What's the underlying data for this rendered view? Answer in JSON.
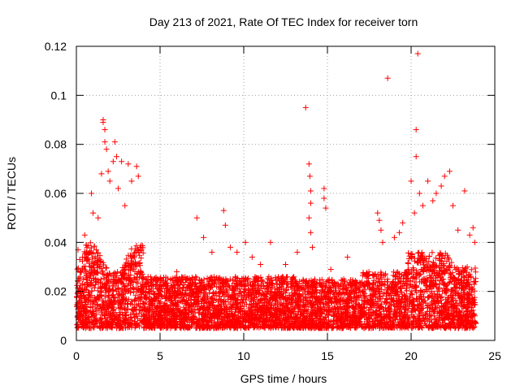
{
  "chart_data": {
    "type": "scatter",
    "title": "Day 213 of 2021, Rate Of TEC Index for receiver torn",
    "xlabel": "GPS time / hours",
    "ylabel": "ROTI / TECUs",
    "xlim": [
      0,
      25
    ],
    "ylim": [
      0,
      0.12
    ],
    "xticks": [
      0,
      5,
      10,
      15,
      20,
      25
    ],
    "yticks": [
      0,
      0.02,
      0.04,
      0.06,
      0.08,
      0.1,
      0.12
    ],
    "xtick_labels": [
      "0",
      "5",
      "10",
      "15",
      "20",
      "25"
    ],
    "ytick_labels": [
      "0",
      "0.02",
      "0.04",
      "0.06",
      "0.08",
      "0.1",
      "0.12"
    ],
    "grid": true,
    "marker": "+",
    "color": "#ff0000",
    "series": [
      {
        "points": [
          [
            0.1,
            0.037
          ],
          [
            0.2,
            0.033
          ],
          [
            0.5,
            0.043
          ],
          [
            0.9,
            0.06
          ],
          [
            1.0,
            0.052
          ],
          [
            1.3,
            0.05
          ],
          [
            1.5,
            0.068
          ],
          [
            1.6,
            0.09
          ],
          [
            1.6,
            0.089
          ],
          [
            1.7,
            0.086
          ],
          [
            1.7,
            0.081
          ],
          [
            1.8,
            0.078
          ],
          [
            1.9,
            0.069
          ],
          [
            2.0,
            0.065
          ],
          [
            2.2,
            0.073
          ],
          [
            2.3,
            0.081
          ],
          [
            2.4,
            0.075
          ],
          [
            2.5,
            0.062
          ],
          [
            2.7,
            0.073
          ],
          [
            2.9,
            0.055
          ],
          [
            3.1,
            0.072
          ],
          [
            3.3,
            0.065
          ],
          [
            3.6,
            0.071
          ],
          [
            3.7,
            0.067
          ],
          [
            3.8,
            0.038
          ],
          [
            4.5,
            0.025
          ],
          [
            6.0,
            0.028
          ],
          [
            7.2,
            0.05
          ],
          [
            7.6,
            0.042
          ],
          [
            8.1,
            0.036
          ],
          [
            8.8,
            0.053
          ],
          [
            8.9,
            0.047
          ],
          [
            9.2,
            0.038
          ],
          [
            9.6,
            0.036
          ],
          [
            10.1,
            0.04
          ],
          [
            10.5,
            0.034
          ],
          [
            11.0,
            0.031
          ],
          [
            11.6,
            0.04
          ],
          [
            12.5,
            0.031
          ],
          [
            13.2,
            0.036
          ],
          [
            13.7,
            0.095
          ],
          [
            13.9,
            0.072
          ],
          [
            13.95,
            0.067
          ],
          [
            14.0,
            0.061
          ],
          [
            14.0,
            0.056
          ],
          [
            13.9,
            0.05
          ],
          [
            14.0,
            0.044
          ],
          [
            14.1,
            0.038
          ],
          [
            14.8,
            0.062
          ],
          [
            14.8,
            0.058
          ],
          [
            14.9,
            0.054
          ],
          [
            15.2,
            0.029
          ],
          [
            16.2,
            0.034
          ],
          [
            17.5,
            0.027
          ],
          [
            18.0,
            0.052
          ],
          [
            18.1,
            0.049
          ],
          [
            18.2,
            0.045
          ],
          [
            18.3,
            0.04
          ],
          [
            18.6,
            0.107
          ],
          [
            19.0,
            0.042
          ],
          [
            19.3,
            0.044
          ],
          [
            19.5,
            0.048
          ],
          [
            20.0,
            0.065
          ],
          [
            20.2,
            0.052
          ],
          [
            20.3,
            0.086
          ],
          [
            20.3,
            0.075
          ],
          [
            20.4,
            0.117
          ],
          [
            20.5,
            0.06
          ],
          [
            20.7,
            0.055
          ],
          [
            21.0,
            0.065
          ],
          [
            21.3,
            0.057
          ],
          [
            21.5,
            0.06
          ],
          [
            21.8,
            0.063
          ],
          [
            22.0,
            0.067
          ],
          [
            22.3,
            0.069
          ],
          [
            22.5,
            0.055
          ],
          [
            22.8,
            0.045
          ],
          [
            23.2,
            0.061
          ],
          [
            23.5,
            0.043
          ],
          [
            23.7,
            0.046
          ],
          [
            23.8,
            0.04
          ]
        ]
      }
    ]
  }
}
